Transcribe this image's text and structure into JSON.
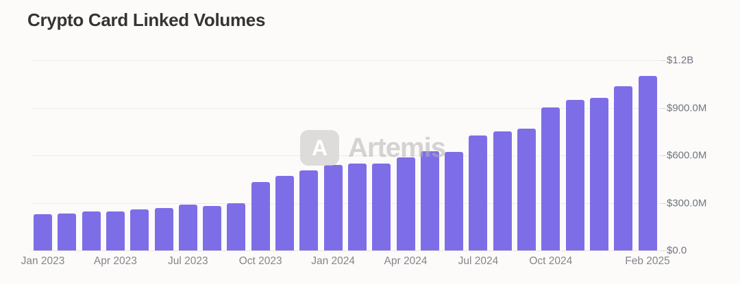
{
  "title": "Crypto Card Linked Volumes",
  "watermark": {
    "logo_letter": "A",
    "text": "Artemis"
  },
  "colors": {
    "bar": "#7d6ee8",
    "grid": "#ececea",
    "axis_label": "#70757f",
    "title": "#343434",
    "background": "#fcfbf9",
    "watermark": "#b2b2b0"
  },
  "chart_data": {
    "type": "bar",
    "title": "Crypto Card Linked Volumes",
    "unit": "USD volume per month",
    "categories": [
      "Jan 2023",
      "Feb 2023",
      "Mar 2023",
      "Apr 2023",
      "May 2023",
      "Jun 2023",
      "Jul 2023",
      "Aug 2023",
      "Sep 2023",
      "Oct 2023",
      "Nov 2023",
      "Dec 2023",
      "Jan 2024",
      "Feb 2024",
      "Mar 2024",
      "Apr 2024",
      "May 2024",
      "Jun 2024",
      "Jul 2024",
      "Aug 2024",
      "Sep 2024",
      "Oct 2024",
      "Nov 2024",
      "Dec 2024",
      "Jan 2025",
      "Feb 2025"
    ],
    "values_millions_usd": [
      228,
      235,
      245,
      245,
      257,
      267,
      290,
      282,
      300,
      430,
      470,
      506,
      538,
      550,
      548,
      587,
      625,
      620,
      727,
      752,
      770,
      903,
      950,
      962,
      1038,
      1100
    ],
    "y_ticks": [
      {
        "label": "$0.0",
        "value": 0
      },
      {
        "label": "$300.0M",
        "value": 300
      },
      {
        "label": "$600.0M",
        "value": 600
      },
      {
        "label": "$900.0M",
        "value": 900
      },
      {
        "label": "$1.2B",
        "value": 1200
      }
    ],
    "x_tick_labels": [
      "Jan 2023",
      "Apr 2023",
      "Jul 2023",
      "Oct 2023",
      "Jan 2024",
      "Apr 2024",
      "Jul 2024",
      "Oct 2024",
      "Feb 2025"
    ],
    "ylim": [
      0,
      1200
    ],
    "grid": "horizontal",
    "legend": "none",
    "y_axis_position": "right"
  }
}
